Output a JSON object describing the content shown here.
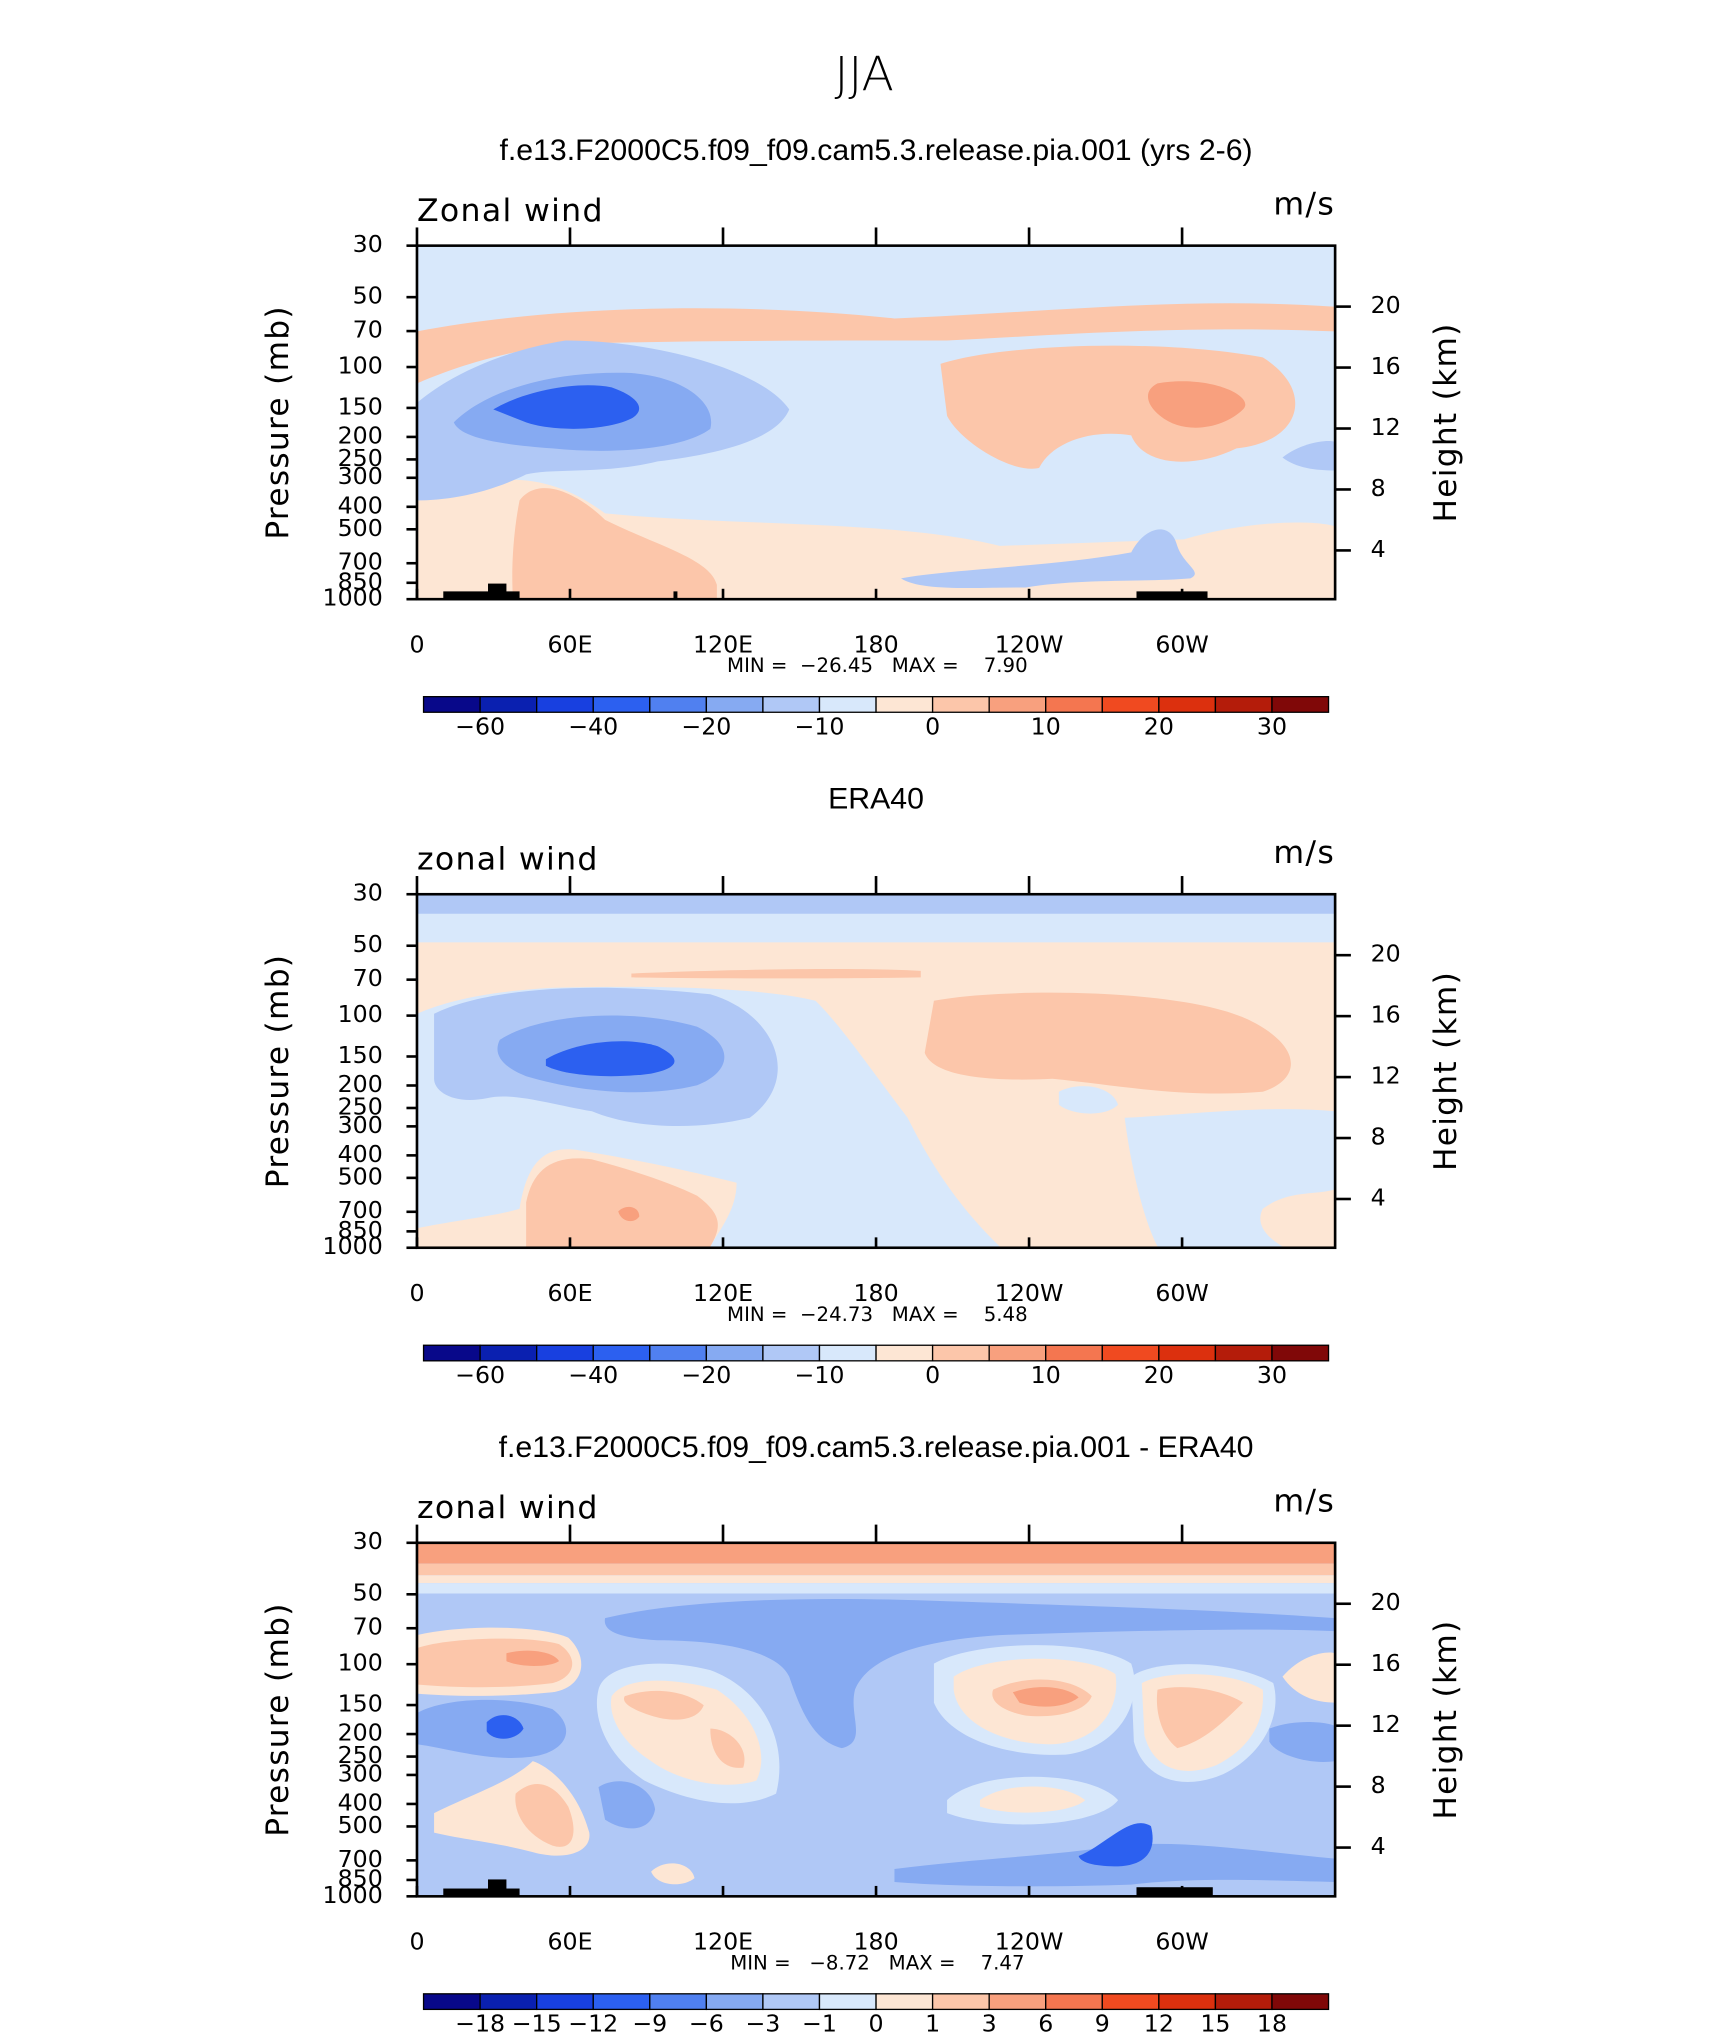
{
  "suptitle": "JJA",
  "chart_data": [
    {
      "type": "contour",
      "title": "f.e13.F2000C5.f09_f09.cam5.3.release.pia.001 (yrs 2-6)",
      "variable": "Zonal wind",
      "units": "m/s",
      "ylabel": "Pressure (mb)",
      "y2label": "Height (km)",
      "xlim": [
        0,
        360
      ],
      "xticks": [
        0,
        {
          "value": 60,
          "label": "60E"
        },
        {
          "value": 120,
          "label": "120E"
        },
        180,
        {
          "value": 240,
          "label": "120W"
        },
        {
          "value": 300,
          "label": "60W"
        }
      ],
      "ylim": [
        1000,
        30
      ],
      "log_y": true,
      "yticks": [
        30,
        50,
        70,
        100,
        150,
        200,
        250,
        300,
        400,
        500,
        700,
        850,
        1000
      ],
      "y2lim": [
        0.8,
        24
      ],
      "y2ticks": [
        4,
        8,
        12,
        16,
        20
      ],
      "stats": "MIN =  −26.45   MAX =    7.90",
      "colorbar": {
        "levels": [
          {
            "value": -60,
            "label": "−60"
          },
          {
            "value": -40,
            "label": "−40"
          },
          {
            "value": -20,
            "label": "−20"
          },
          {
            "value": -10,
            "label": "−10"
          },
          0,
          10,
          20,
          30
        ],
        "colors": [
          "#08088a",
          "#0a20b0",
          "#1840e0",
          "#2c60f0",
          "#5080f0",
          "#86aaf2",
          "#b0c8f6",
          "#d8e8fb",
          "#fde6d4",
          "#fcc6aa",
          "#f8a07e",
          "#f47650",
          "#f04a20",
          "#dc300e",
          "#b41c0a",
          "#800808"
        ]
      }
    },
    {
      "type": "contour",
      "title": "ERA40",
      "variable": "zonal wind",
      "units": "m/s",
      "ylabel": "Pressure (mb)",
      "y2label": "Height (km)",
      "xlim": [
        0,
        360
      ],
      "xticks": [
        0,
        {
          "value": 60,
          "label": "60E"
        },
        {
          "value": 120,
          "label": "120E"
        },
        180,
        {
          "value": 240,
          "label": "120W"
        },
        {
          "value": 300,
          "label": "60W"
        }
      ],
      "ylim": [
        1000,
        30
      ],
      "log_y": true,
      "yticks": [
        30,
        50,
        70,
        100,
        150,
        200,
        250,
        300,
        400,
        500,
        700,
        850,
        1000
      ],
      "y2lim": [
        0.8,
        24
      ],
      "y2ticks": [
        4,
        8,
        12,
        16,
        20
      ],
      "stats": "MIN =  −24.73   MAX =    5.48",
      "colorbar": {
        "levels": [
          {
            "value": -60,
            "label": "−60"
          },
          {
            "value": -40,
            "label": "−40"
          },
          {
            "value": -20,
            "label": "−20"
          },
          {
            "value": -10,
            "label": "−10"
          },
          0,
          10,
          20,
          30
        ],
        "colors": [
          "#08088a",
          "#0a20b0",
          "#1840e0",
          "#2c60f0",
          "#5080f0",
          "#86aaf2",
          "#b0c8f6",
          "#d8e8fb",
          "#fde6d4",
          "#fcc6aa",
          "#f8a07e",
          "#f47650",
          "#f04a20",
          "#dc300e",
          "#b41c0a",
          "#800808"
        ]
      }
    },
    {
      "type": "contour",
      "title": "f.e13.F2000C5.f09_f09.cam5.3.release.pia.001 - ERA40",
      "variable": "zonal wind",
      "units": "m/s",
      "ylabel": "Pressure (mb)",
      "y2label": "Height (km)",
      "xlim": [
        0,
        360
      ],
      "xticks": [
        0,
        {
          "value": 60,
          "label": "60E"
        },
        {
          "value": 120,
          "label": "120E"
        },
        180,
        {
          "value": 240,
          "label": "120W"
        },
        {
          "value": 300,
          "label": "60W"
        }
      ],
      "ylim": [
        1000,
        30
      ],
      "log_y": true,
      "yticks": [
        30,
        50,
        70,
        100,
        150,
        200,
        250,
        300,
        400,
        500,
        700,
        850,
        1000
      ],
      "y2lim": [
        0.8,
        24
      ],
      "y2ticks": [
        4,
        8,
        12,
        16,
        20
      ],
      "stats": "MIN =   −8.72   MAX =    7.47",
      "colorbar": {
        "levels": [
          {
            "value": -18,
            "label": "−18"
          },
          {
            "value": -15,
            "label": "−15"
          },
          {
            "value": -12,
            "label": "−12"
          },
          {
            "value": -9,
            "label": "−9"
          },
          {
            "value": -6,
            "label": "−6"
          },
          {
            "value": -3,
            "label": "−3"
          },
          {
            "value": -1,
            "label": "−1"
          },
          0,
          1,
          3,
          6,
          9,
          12,
          15,
          18
        ],
        "colors": [
          "#08088a",
          "#0a20b0",
          "#1840e0",
          "#2c60f0",
          "#5080f0",
          "#86aaf2",
          "#b0c8f6",
          "#d8e8fb",
          "#fde6d4",
          "#fcc6aa",
          "#f8a07e",
          "#f47650",
          "#f04a20",
          "#dc300e",
          "#b41c0a",
          "#800808"
        ]
      }
    }
  ]
}
